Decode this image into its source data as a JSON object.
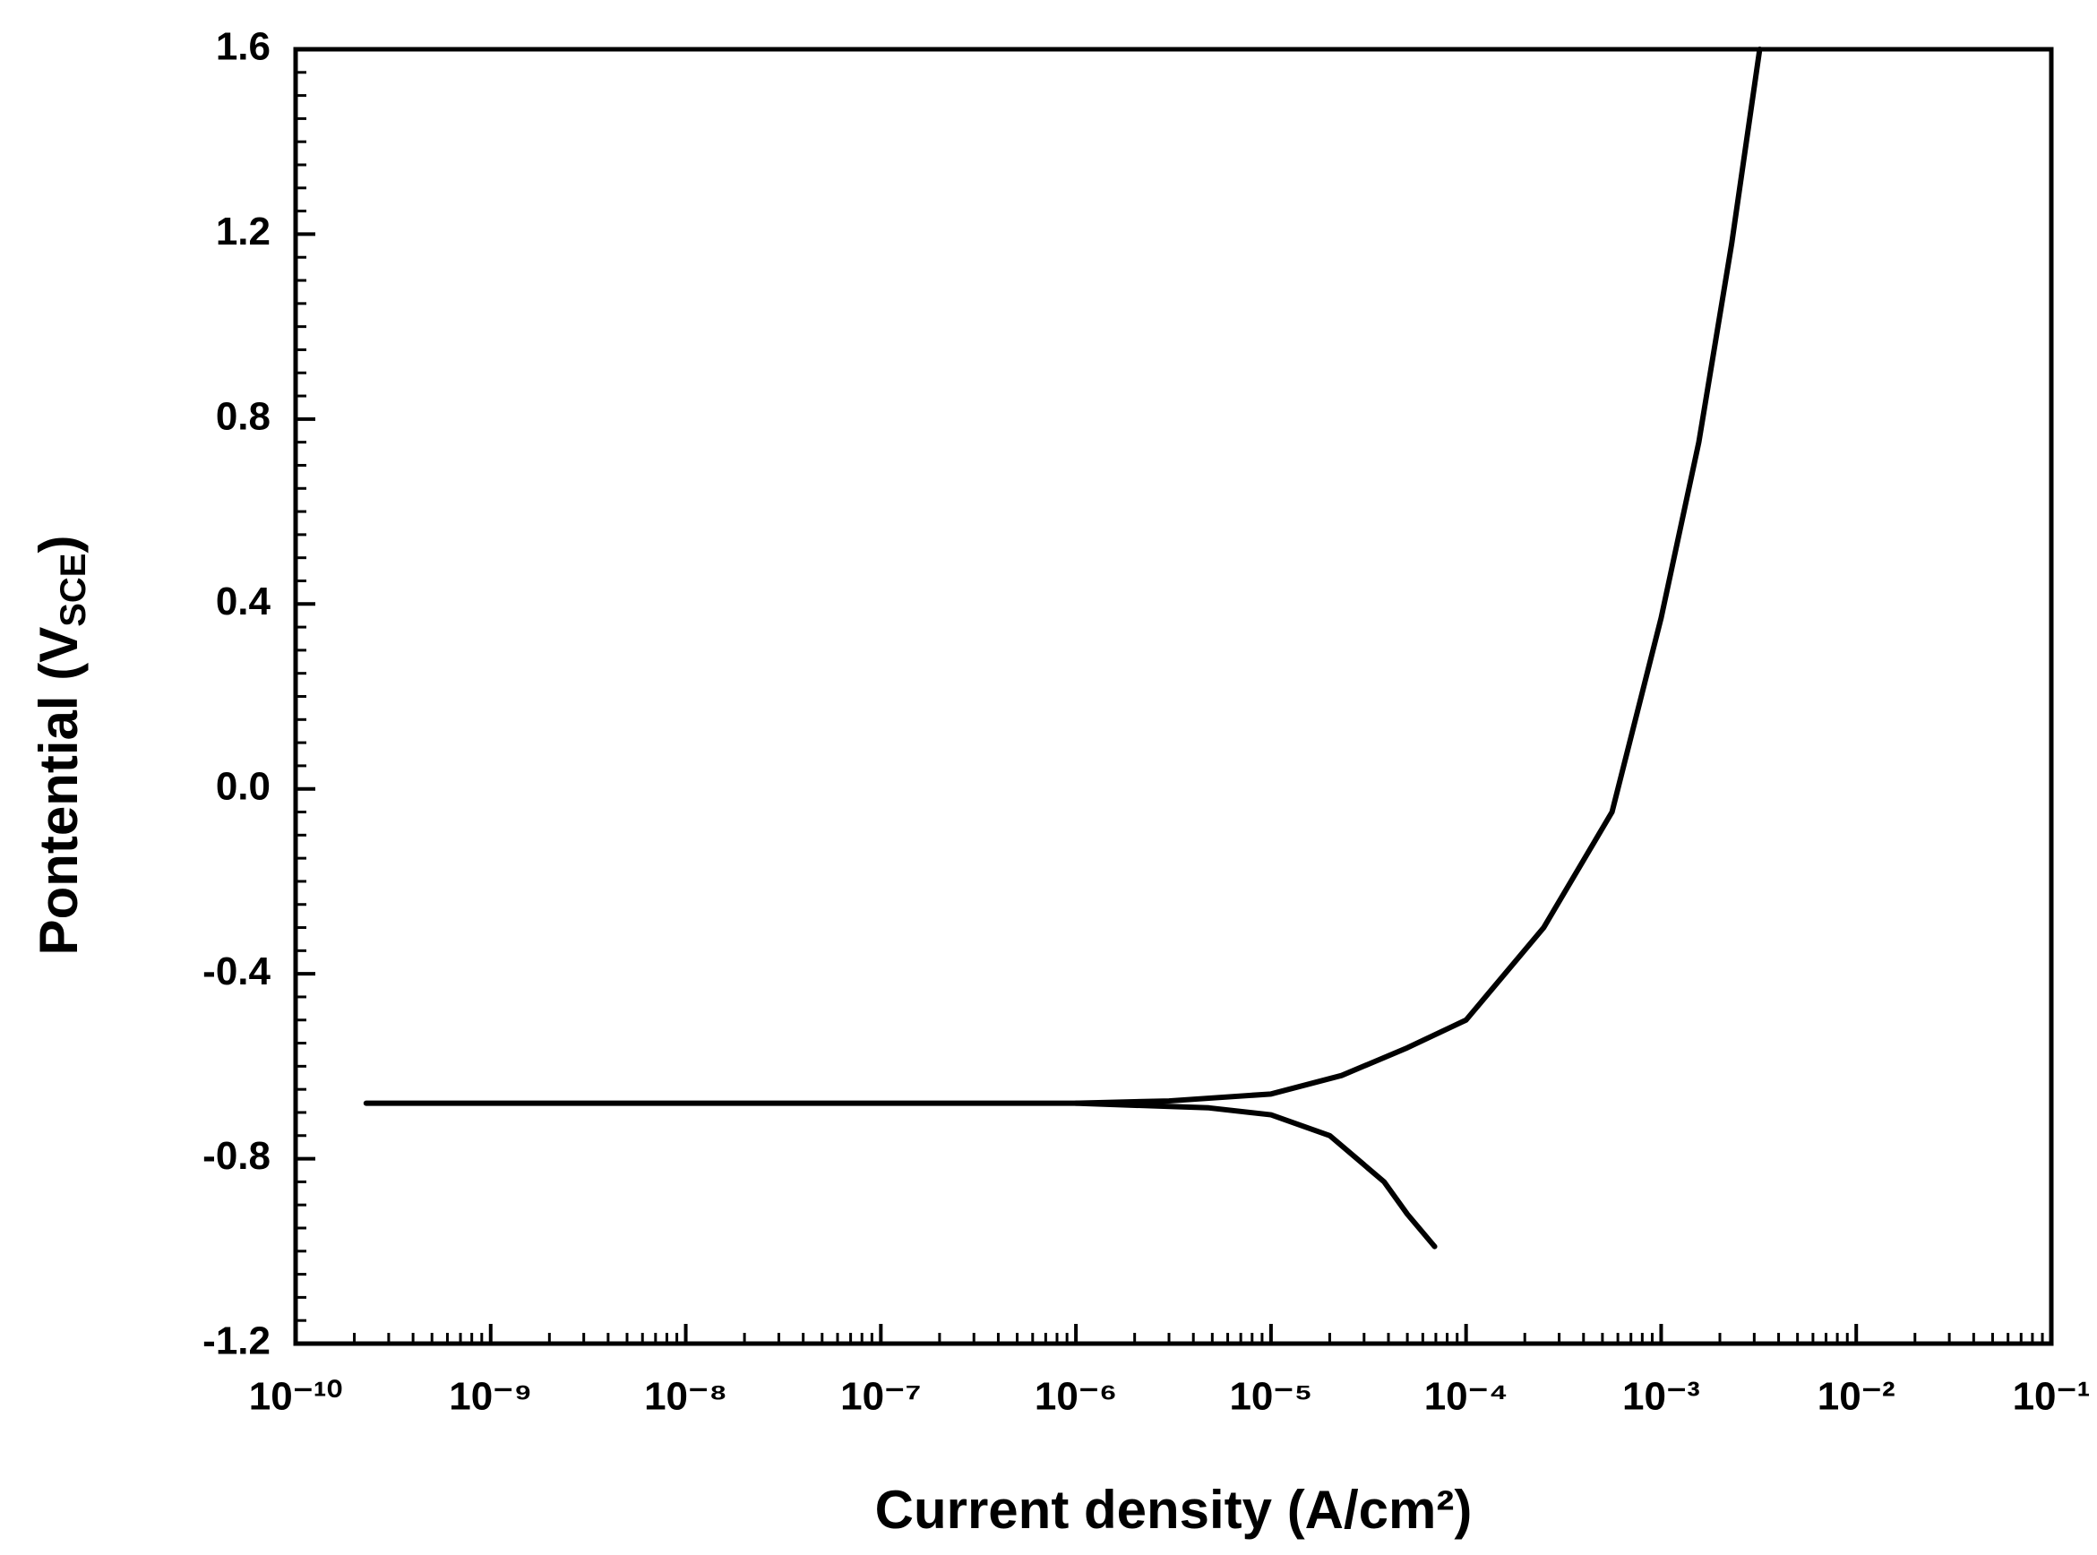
{
  "chart_data": {
    "type": "line",
    "xlabel": "Current density (A/cm²)",
    "ylabel": {
      "main": "Pontential (V",
      "sub": "SCE",
      "end": ")"
    },
    "xscale": "log",
    "xlim": [
      1e-10,
      0.1
    ],
    "xticks": [
      {
        "value": 1e-10,
        "label": "10⁻¹⁰"
      },
      {
        "value": 1e-09,
        "label": "10⁻⁹"
      },
      {
        "value": 1e-08,
        "label": "10⁻⁸"
      },
      {
        "value": 1e-07,
        "label": "10⁻⁷"
      },
      {
        "value": 1e-06,
        "label": "10⁻⁶"
      },
      {
        "value": 1e-05,
        "label": "10⁻⁵"
      },
      {
        "value": 0.0001,
        "label": "10⁻⁴"
      },
      {
        "value": 0.001,
        "label": "10⁻³"
      },
      {
        "value": 0.01,
        "label": "10⁻²"
      },
      {
        "value": 0.1,
        "label": "10⁻¹"
      }
    ],
    "ylim": [
      -1.2,
      1.6
    ],
    "yticks": [
      {
        "value": -1.2,
        "label": "-1.2"
      },
      {
        "value": -0.8,
        "label": "-0.8"
      },
      {
        "value": -0.4,
        "label": "-0.4"
      },
      {
        "value": 0,
        "label": "0.0"
      },
      {
        "value": 0.4,
        "label": "0.4"
      },
      {
        "value": 0.8,
        "label": "0.8"
      },
      {
        "value": 1.2,
        "label": "1.2"
      },
      {
        "value": 1.6,
        "label": "1.6"
      }
    ],
    "grid": false,
    "series": [
      {
        "color": "#000000",
        "x": [
          2.3e-10,
          1e-08,
          1e-06,
          3e-06,
          1e-05,
          2.3e-05,
          5e-05,
          0.0001,
          0.00025,
          0.00056,
          0.001,
          0.00156,
          0.0023,
          0.0032
        ],
        "values": [
          -0.68,
          -0.68,
          -0.68,
          -0.675,
          -0.66,
          -0.62,
          -0.56,
          -0.5,
          -0.3,
          -0.05,
          0.37,
          0.75,
          1.18,
          1.6
        ]
      },
      {
        "color": "#000000",
        "x": [
          1e-06,
          4.8e-06,
          1e-05,
          2e-05,
          3.8e-05,
          5e-05,
          6.9e-05
        ],
        "values": [
          -0.68,
          -0.69,
          -0.705,
          -0.75,
          -0.85,
          -0.92,
          -0.99
        ]
      }
    ]
  }
}
